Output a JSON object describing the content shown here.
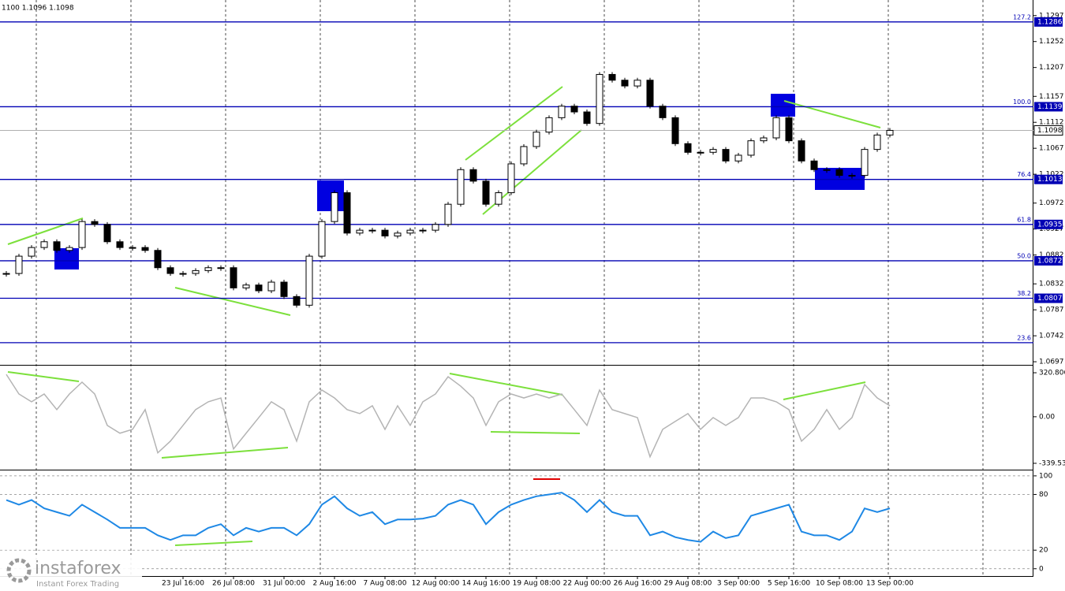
{
  "header": "1100 1.1096 1.1098",
  "watermark": {
    "brand": "instaforex",
    "tagline": "Instant Forex Trading"
  },
  "chart_data": [
    {
      "type": "candlestick",
      "values": [
        1.085,
        1.088,
        1.0895,
        1.0905,
        1.089,
        1.0895,
        1.094,
        1.0935,
        1.0905,
        1.0895,
        1.0895,
        1.089,
        1.086,
        1.085,
        1.085,
        1.0855,
        1.086,
        1.086,
        1.0825,
        1.083,
        1.082,
        1.0835,
        1.081,
        1.0795,
        1.088,
        1.094,
        1.099,
        1.092,
        1.0925,
        1.0925,
        1.0915,
        1.092,
        1.0925,
        1.0925,
        1.0935,
        1.097,
        1.103,
        1.101,
        1.097,
        1.099,
        1.104,
        1.107,
        1.1095,
        1.112,
        1.114,
        1.113,
        1.111,
        1.1195,
        1.1185,
        1.1175,
        1.1185,
        1.114,
        1.112,
        1.1075,
        1.106,
        1.106,
        1.1065,
        1.1045,
        1.1055,
        1.108,
        1.1085,
        1.112,
        1.108,
        1.1045,
        1.103,
        1.103,
        1.102,
        1.102,
        1.1065,
        1.109,
        1.1098
      ],
      "ylim": [
        1.0693,
        1.1324
      ],
      "yticks": [
        1.1297,
        1.1252,
        1.1207,
        1.1157,
        1.1112,
        1.1067,
        1.1022,
        1.0972,
        1.0927,
        1.0882,
        1.0832,
        1.0787,
        1.0742,
        1.0697
      ],
      "levels": [
        {
          "name": "127.2",
          "price": 1.1286
        },
        {
          "name": "100.0",
          "price": 1.1139
        },
        {
          "name": "76.4",
          "price": 1.1013
        },
        {
          "name": "61.8",
          "price": 1.0935
        },
        {
          "name": "50.0",
          "price": 1.0872
        },
        {
          "name": "38.2",
          "price": 1.0807
        },
        {
          "name": "23.6",
          "price": 1.073,
          "price_label": false
        }
      ],
      "level_color": "#0000b4",
      "last_price": 1.1098
    },
    {
      "type": "line",
      "color": "#b4b4b4",
      "values": [
        309,
        166,
        109,
        166,
        52,
        166,
        252,
        166,
        -63,
        -120,
        -92,
        52,
        -263,
        -178,
        -63,
        52,
        109,
        137,
        -235,
        -120,
        -6,
        109,
        52,
        -178,
        109,
        195,
        137,
        52,
        23,
        80,
        -92,
        80,
        -63,
        109,
        166,
        292,
        223,
        137,
        -63,
        109,
        166,
        137,
        166,
        137,
        166,
        52,
        -63,
        195,
        52,
        23,
        -6,
        -292,
        -92,
        -34,
        23,
        -92,
        -6,
        -63,
        -6,
        137,
        137,
        109,
        52,
        -178,
        -92,
        52,
        -92,
        -6,
        235,
        137,
        80
      ],
      "ylim": [
        -380,
        367
      ],
      "yticks": [
        320.8062,
        {
          "value": 0,
          "label": "0.00"
        },
        -339.532
      ]
    },
    {
      "type": "line",
      "color": "#1e88e5",
      "grid": true,
      "values": [
        74,
        69,
        74,
        65,
        61,
        57,
        69,
        61,
        53,
        44,
        44,
        44,
        36,
        31,
        36,
        36,
        44,
        48,
        36,
        44,
        40,
        44,
        44,
        36,
        48,
        69,
        78,
        65,
        57,
        61,
        48,
        53,
        53,
        54,
        57,
        69,
        74,
        69,
        48,
        61,
        69,
        74,
        78,
        80,
        82,
        74,
        61,
        74,
        61,
        57,
        57,
        36,
        40,
        34,
        31,
        29,
        40,
        33,
        36,
        57,
        61,
        65,
        69,
        40,
        36,
        36,
        31,
        40,
        65,
        61,
        65
      ],
      "ylim": [
        -7,
        105
      ],
      "yticks": [
        100,
        80,
        20,
        0
      ],
      "categories": [
        null,
        null,
        null,
        null,
        null,
        null,
        null,
        null,
        null,
        null,
        null,
        null,
        null,
        null,
        "23 Jul 16:00",
        null,
        null,
        null,
        "26 Jul 08:00",
        null,
        null,
        null,
        "31 Jul 00:00",
        null,
        null,
        null,
        "2 Aug 16:00",
        null,
        null,
        null,
        "7 Aug 08:00",
        null,
        null,
        null,
        "12 Aug 00:00",
        null,
        null,
        null,
        "14 Aug 16:00",
        null,
        null,
        null,
        "19 Aug 08:00",
        null,
        null,
        null,
        "22 Aug 00:00",
        null,
        null,
        null,
        "26 Aug 16:00",
        null,
        null,
        null,
        "29 Aug 08:00",
        null,
        null,
        null,
        "3 Sep 00:00",
        null,
        null,
        null,
        "5 Sep 16:00",
        null,
        null,
        null,
        "10 Sep 08:00",
        null,
        null,
        null,
        "13 Sep 00:00"
      ]
    }
  ]
}
